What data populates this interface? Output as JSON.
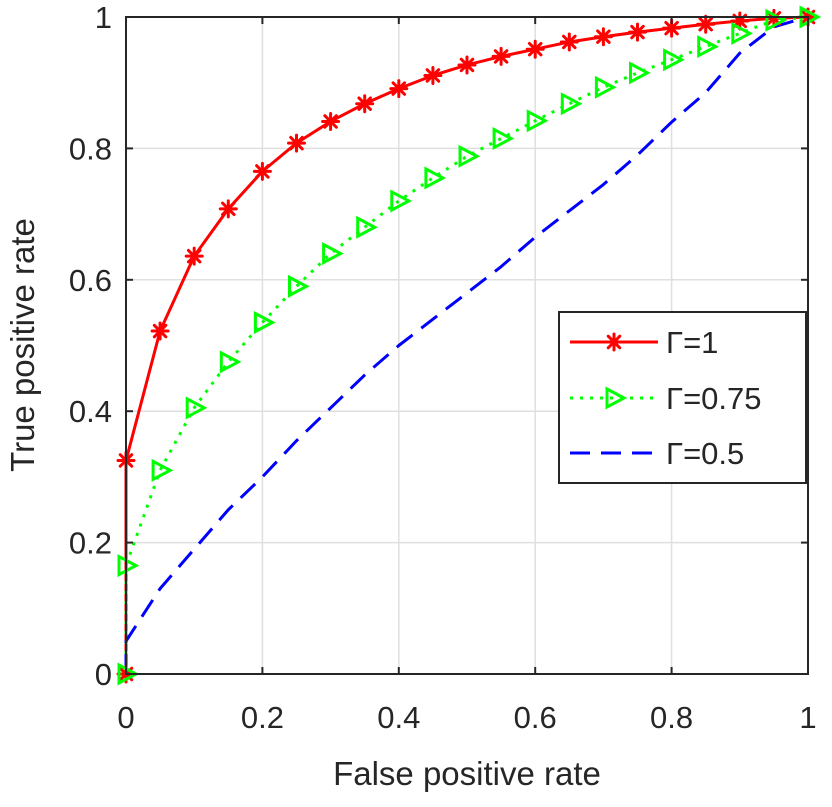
{
  "chart_data": {
    "type": "line",
    "xlabel": "False positive rate",
    "ylabel": "True positive rate",
    "xlim": [
      0,
      1
    ],
    "ylim": [
      0,
      1
    ],
    "xticks": [
      "0",
      "0.2",
      "0.4",
      "0.6",
      "0.8",
      "1"
    ],
    "yticks": [
      "0",
      "0.2",
      "0.4",
      "0.6",
      "0.8",
      "1"
    ],
    "grid": true,
    "legend_position": "right",
    "series": [
      {
        "name": "Γ=1",
        "color": "#ff0000",
        "line_style": "solid",
        "marker": "asterisk",
        "x": [
          0,
          0,
          0.05,
          0.1,
          0.15,
          0.2,
          0.25,
          0.3,
          0.35,
          0.4,
          0.45,
          0.5,
          0.55,
          0.6,
          0.65,
          0.7,
          0.75,
          0.8,
          0.85,
          0.9,
          0.95,
          1
        ],
        "y": [
          0,
          0.325,
          0.522,
          0.636,
          0.708,
          0.765,
          0.808,
          0.841,
          0.868,
          0.891,
          0.911,
          0.927,
          0.94,
          0.951,
          0.962,
          0.97,
          0.977,
          0.983,
          0.989,
          0.994,
          0.998,
          1
        ]
      },
      {
        "name": "Γ=0.75",
        "color": "#00ff00",
        "line_style": "dotted",
        "marker": "triangle-right",
        "x": [
          0,
          0,
          0.05,
          0.1,
          0.15,
          0.2,
          0.25,
          0.3,
          0.35,
          0.4,
          0.45,
          0.5,
          0.55,
          0.6,
          0.65,
          0.7,
          0.75,
          0.8,
          0.85,
          0.9,
          0.95,
          1
        ],
        "y": [
          0,
          0.165,
          0.31,
          0.405,
          0.475,
          0.535,
          0.59,
          0.64,
          0.68,
          0.72,
          0.755,
          0.788,
          0.815,
          0.842,
          0.868,
          0.893,
          0.915,
          0.935,
          0.955,
          0.975,
          0.995,
          1
        ]
      },
      {
        "name": "Γ=0.5",
        "color": "#0000ff",
        "line_style": "dashed",
        "marker": "none",
        "x": [
          0,
          0,
          0.05,
          0.1,
          0.15,
          0.2,
          0.25,
          0.3,
          0.35,
          0.4,
          0.45,
          0.5,
          0.55,
          0.6,
          0.65,
          0.7,
          0.75,
          0.8,
          0.85,
          0.9,
          0.95,
          1
        ],
        "y": [
          0,
          0.05,
          0.13,
          0.19,
          0.25,
          0.3,
          0.355,
          0.405,
          0.455,
          0.5,
          0.54,
          0.58,
          0.62,
          0.665,
          0.705,
          0.745,
          0.79,
          0.84,
          0.885,
          0.945,
          0.985,
          1
        ]
      }
    ]
  }
}
